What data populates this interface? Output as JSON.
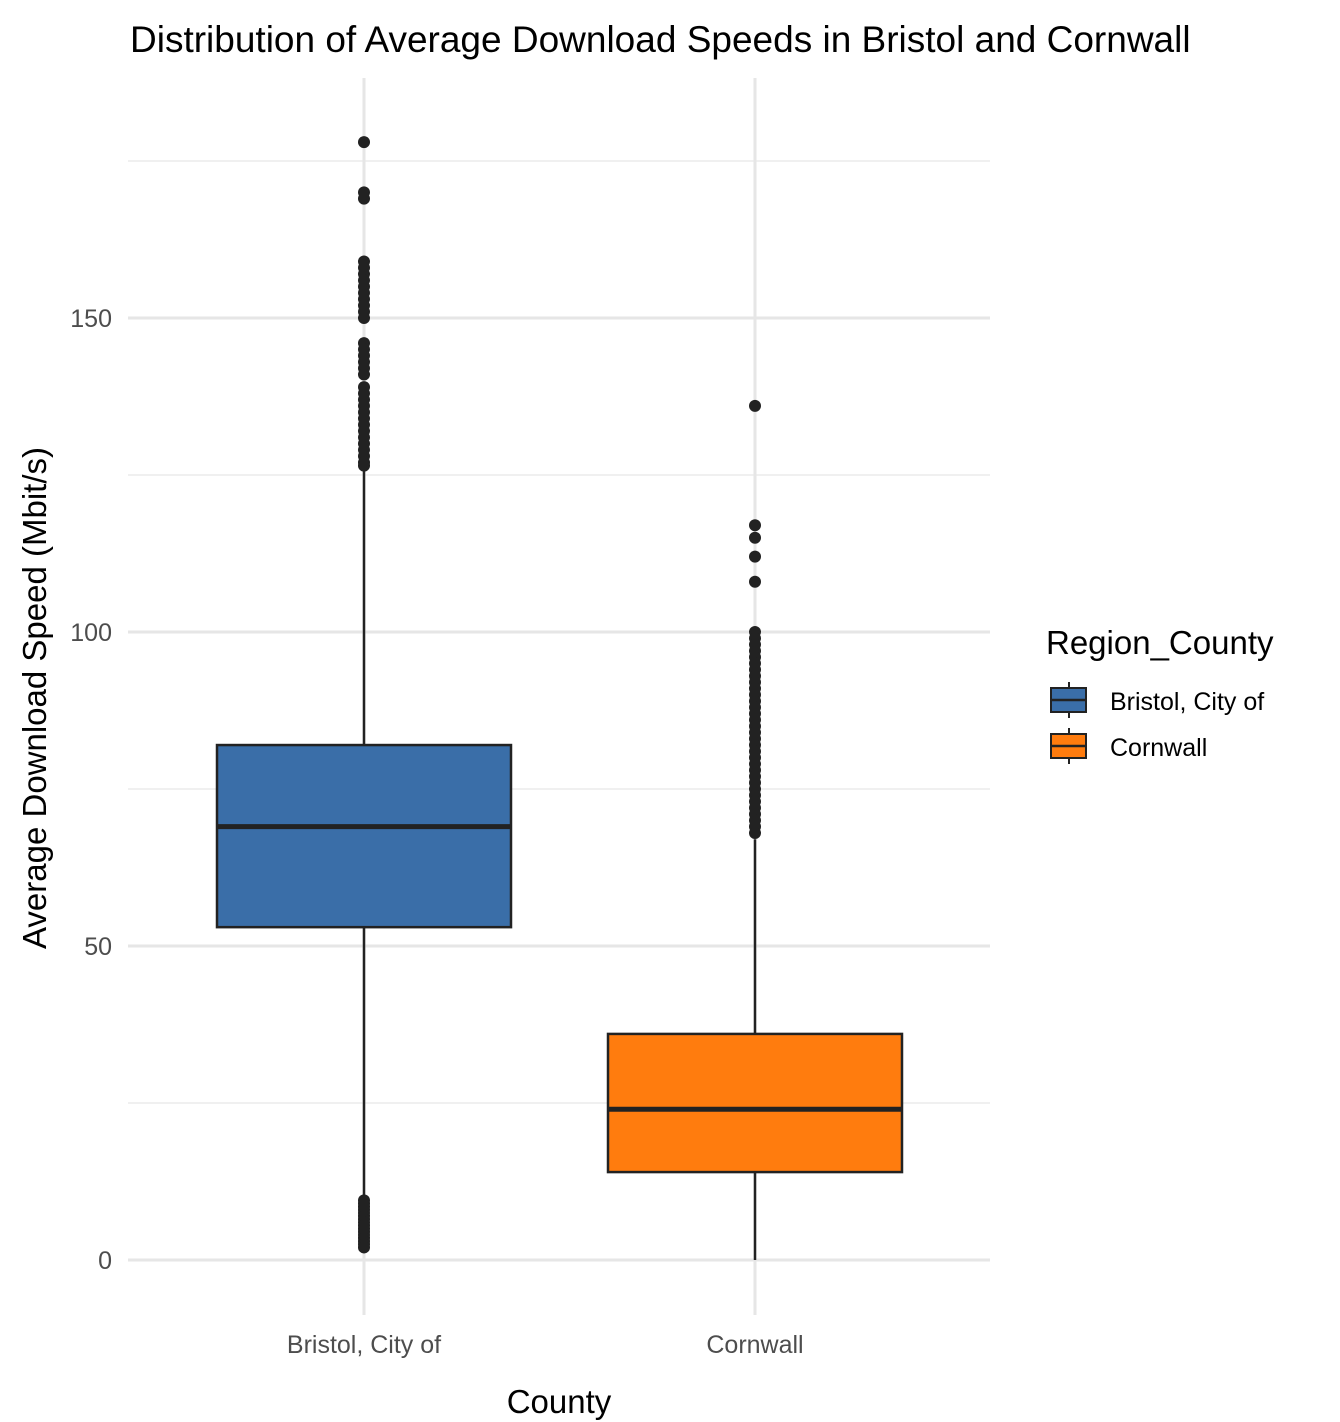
{
  "chart_data": {
    "type": "boxplot",
    "title": "Distribution of Average Download Speeds in Bristol and Cornwall",
    "xlabel": "County",
    "ylabel": "Average Download Speed (Mbit/s)",
    "ylim": [
      -7,
      188
    ],
    "y_ticks": [
      0,
      50,
      100,
      150
    ],
    "y_tick_labels": [
      "0",
      "50",
      "100",
      "150"
    ],
    "y_minor_gridlines": [
      25,
      75,
      125,
      175
    ],
    "grid": true,
    "legend": {
      "title": "Region_County",
      "position": "right",
      "entries": [
        "Bristol, City of",
        "Cornwall"
      ]
    },
    "categories": [
      "Bristol, City of",
      "Cornwall"
    ],
    "series": [
      {
        "name": "Bristol, City of",
        "color": "#3a6ea8",
        "q1": 53,
        "median": 69,
        "q3": 82,
        "whisker_low": 10,
        "whisker_high": 126,
        "outliers": [
          178,
          170,
          169,
          159,
          158,
          157,
          156,
          155,
          154,
          153,
          152,
          151,
          150,
          146,
          145,
          144,
          143,
          142,
          141,
          139,
          138,
          137,
          136,
          135,
          134,
          133,
          132,
          131,
          130,
          129,
          128,
          127,
          126.5,
          9.5,
          9,
          8.5,
          8,
          7.5,
          7,
          6.5,
          6,
          5.5,
          5,
          4.5,
          4,
          3.5,
          3,
          2.5,
          2
        ]
      },
      {
        "name": "Cornwall",
        "color": "#ff7c0e",
        "q1": 14,
        "median": 24,
        "q3": 36,
        "whisker_low": 0,
        "whisker_high": 67,
        "outliers": [
          136,
          117,
          115,
          112,
          108,
          100,
          99,
          98,
          97,
          96,
          95,
          94,
          93,
          92,
          91,
          90,
          89,
          88,
          87,
          86,
          85,
          84,
          83,
          82,
          81,
          80,
          79,
          78,
          77,
          76,
          75,
          74,
          73,
          72,
          71,
          70,
          69,
          68
        ]
      }
    ]
  }
}
